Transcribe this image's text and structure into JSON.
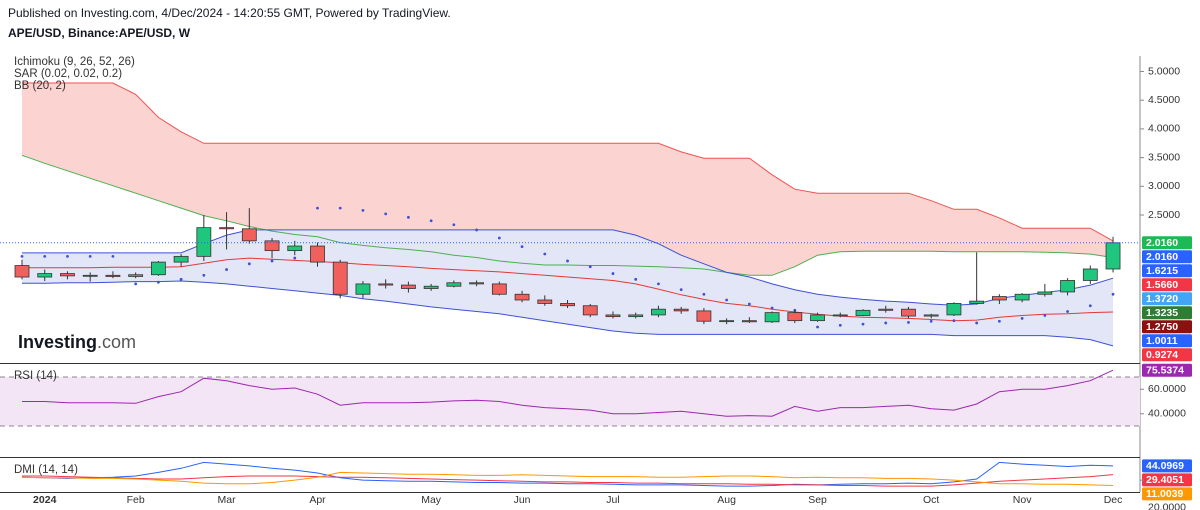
{
  "header": {
    "published": "Published on Investing.com, 4/Dec/2024 - 14:20:55 GMT, Powered by TradingView."
  },
  "watermark": {
    "brand": "Investing",
    "suffix": ".com"
  },
  "chart_data": [
    {
      "type": "candlestick",
      "title": "APE/USD, Binance:APE/USD, W",
      "indicators": [
        "Ichimoku (9, 26, 52, 26)",
        "SAR (0.02, 0.02, 0.2)",
        "BB (20, 2)"
      ],
      "categories": [
        null,
        "2024",
        null,
        null,
        null,
        "Feb",
        null,
        null,
        null,
        "Mar",
        null,
        null,
        null,
        "Apr",
        null,
        null,
        null,
        null,
        "May",
        null,
        null,
        null,
        "Jun",
        null,
        null,
        null,
        "Jul",
        null,
        null,
        null,
        null,
        "Aug",
        null,
        null,
        null,
        "Sep",
        null,
        null,
        null,
        null,
        "Oct",
        null,
        null,
        null,
        "Nov",
        null,
        null,
        null,
        "Dec"
      ],
      "open": [
        1.62,
        1.42,
        1.48,
        1.44,
        1.45,
        1.43,
        1.46,
        1.68,
        1.78,
        2.28,
        2.26,
        2.05,
        1.88,
        1.96,
        1.68,
        1.12,
        1.3,
        1.28,
        1.22,
        1.26,
        1.32,
        1.3,
        1.12,
        1.02,
        0.96,
        0.92,
        0.76,
        0.73,
        0.76,
        0.86,
        0.83,
        0.65,
        0.66,
        0.64,
        0.8,
        0.66,
        0.76,
        0.75,
        0.84,
        0.86,
        0.74,
        0.76,
        0.96,
        1.08,
        1.02,
        1.12,
        1.16,
        1.36,
        1.56
      ],
      "high": [
        1.72,
        1.55,
        1.52,
        1.5,
        1.52,
        1.5,
        1.7,
        1.82,
        2.5,
        2.55,
        2.62,
        2.1,
        2.05,
        2.02,
        1.72,
        1.35,
        1.38,
        1.34,
        1.3,
        1.36,
        1.36,
        1.34,
        1.18,
        1.1,
        1.02,
        0.95,
        0.82,
        0.8,
        0.92,
        0.9,
        0.88,
        0.7,
        0.72,
        0.82,
        0.84,
        0.8,
        0.8,
        0.86,
        0.92,
        0.9,
        0.78,
        0.98,
        1.85,
        1.12,
        1.14,
        1.3,
        1.4,
        1.62,
        2.12
      ],
      "low": [
        1.38,
        1.35,
        1.38,
        1.34,
        1.4,
        1.4,
        1.44,
        1.6,
        1.7,
        1.9,
        2.0,
        1.75,
        1.8,
        1.6,
        1.05,
        1.05,
        1.22,
        1.15,
        1.18,
        1.24,
        1.26,
        1.1,
        0.98,
        0.92,
        0.88,
        0.72,
        0.7,
        0.7,
        0.72,
        0.78,
        0.6,
        0.6,
        0.62,
        0.62,
        0.62,
        0.64,
        0.72,
        0.74,
        0.8,
        0.7,
        0.7,
        0.74,
        0.94,
        0.95,
        0.98,
        1.08,
        1.1,
        1.3,
        1.5
      ],
      "close": [
        1.42,
        1.48,
        1.44,
        1.45,
        1.43,
        1.46,
        1.68,
        1.78,
        2.28,
        2.26,
        2.05,
        1.88,
        1.96,
        1.68,
        1.12,
        1.3,
        1.28,
        1.22,
        1.26,
        1.32,
        1.3,
        1.12,
        1.02,
        0.96,
        0.92,
        0.76,
        0.73,
        0.76,
        0.86,
        0.83,
        0.65,
        0.66,
        0.64,
        0.8,
        0.66,
        0.76,
        0.75,
        0.84,
        0.86,
        0.74,
        0.76,
        0.96,
        1.0,
        1.02,
        1.12,
        1.16,
        1.36,
        1.56,
        2.016
      ],
      "up_color": "#1fc77e",
      "down_color": "#f0605d",
      "series": [
        {
          "kind": "line",
          "color": "#ef5350",
          "values": [
            4.8,
            4.8,
            4.8,
            4.8,
            4.8,
            4.6,
            4.2,
            3.95,
            3.75,
            3.75,
            3.75,
            3.75,
            3.75,
            3.75,
            3.75,
            3.75,
            3.75,
            3.75,
            3.75,
            3.75,
            3.75,
            3.75,
            3.75,
            3.75,
            3.75,
            3.75,
            3.75,
            3.75,
            3.75,
            3.6,
            3.49,
            3.49,
            3.49,
            3.2,
            2.95,
            2.88,
            2.88,
            2.88,
            2.88,
            2.88,
            2.75,
            2.6,
            2.6,
            2.45,
            2.27,
            2.27,
            2.27,
            2.27,
            2.05
          ]
        },
        {
          "kind": "line",
          "color": "#4caf50",
          "values": [
            3.54,
            3.4,
            3.27,
            3.14,
            3.01,
            2.88,
            2.75,
            2.62,
            2.49,
            2.4,
            2.3,
            2.22,
            2.16,
            2.12,
            2.02,
            1.97,
            1.93,
            1.9,
            1.86,
            1.8,
            1.76,
            1.7,
            1.66,
            1.63,
            1.63,
            1.62,
            1.62,
            1.61,
            1.6,
            1.58,
            1.56,
            1.5,
            1.45,
            1.45,
            1.6,
            1.8,
            1.86,
            1.87,
            1.87,
            1.87,
            1.87,
            1.86,
            1.86,
            1.86,
            1.86,
            1.85,
            1.84,
            1.82,
            1.76
          ]
        },
        {
          "kind": "line",
          "color": "#3f51d5",
          "values": [
            1.84,
            1.84,
            1.84,
            1.84,
            1.84,
            1.84,
            1.84,
            1.84,
            2.0,
            2.15,
            2.24,
            2.24,
            2.24,
            2.24,
            2.24,
            2.24,
            2.24,
            2.24,
            2.24,
            2.24,
            2.24,
            2.24,
            2.24,
            2.24,
            2.24,
            2.24,
            2.24,
            2.15,
            2.0,
            1.8,
            1.65,
            1.5,
            1.42,
            1.3,
            1.2,
            1.12,
            1.07,
            1.03,
            1.0,
            0.98,
            0.95,
            0.93,
            0.95,
            1.05,
            1.1,
            1.15,
            1.2,
            1.28,
            1.4
          ]
        },
        {
          "kind": "line",
          "color": "#3f51d5",
          "values": [
            1.31,
            1.31,
            1.32,
            1.32,
            1.33,
            1.34,
            1.34,
            1.35,
            1.33,
            1.3,
            1.26,
            1.22,
            1.18,
            1.14,
            1.1,
            1.04,
            1.0,
            0.95,
            0.9,
            0.86,
            0.82,
            0.78,
            0.72,
            0.66,
            0.6,
            0.54,
            0.48,
            0.44,
            0.42,
            0.42,
            0.42,
            0.42,
            0.42,
            0.42,
            0.42,
            0.42,
            0.42,
            0.42,
            0.42,
            0.42,
            0.42,
            0.4,
            0.4,
            0.4,
            0.4,
            0.4,
            0.37,
            0.33,
            0.22
          ]
        },
        {
          "kind": "line",
          "color": "#e53935",
          "values": [
            1.58,
            1.58,
            1.58,
            1.58,
            1.59,
            1.59,
            1.59,
            1.6,
            1.66,
            1.72,
            1.75,
            1.73,
            1.71,
            1.69,
            1.67,
            1.64,
            1.62,
            1.6,
            1.57,
            1.55,
            1.53,
            1.51,
            1.48,
            1.45,
            1.42,
            1.39,
            1.36,
            1.3,
            1.21,
            1.11,
            1.03,
            0.96,
            0.92,
            0.86,
            0.81,
            0.77,
            0.74,
            0.72,
            0.71,
            0.7,
            0.68,
            0.66,
            0.67,
            0.72,
            0.75,
            0.77,
            0.78,
            0.8,
            0.81
          ]
        },
        {
          "kind": "dots",
          "color": "#3f51d5",
          "values": [
            1.78,
            1.78,
            1.78,
            1.78,
            1.78,
            1.3,
            1.33,
            1.38,
            1.45,
            1.55,
            1.65,
            1.7,
            1.75,
            2.62,
            2.62,
            2.58,
            2.52,
            2.46,
            2.4,
            2.33,
            2.24,
            2.1,
            1.95,
            1.82,
            1.7,
            1.6,
            1.48,
            1.38,
            1.3,
            1.2,
            1.12,
            1.02,
            0.95,
            0.88,
            0.84,
            0.55,
            0.58,
            0.6,
            0.62,
            0.63,
            0.65,
            0.66,
            0.62,
            0.65,
            0.7,
            0.75,
            0.82,
            0.92,
            1.12
          ]
        }
      ],
      "fills": [
        {
          "between": [
            0,
            1
          ],
          "color": "#fbd3d1"
        },
        {
          "between": [
            2,
            3
          ],
          "color": "#e3e6f6"
        }
      ],
      "ylim": [
        -0.06,
        5.2
      ],
      "yticks": [
        {
          "value": 5,
          "label": "5.0000"
        },
        {
          "value": 4.5,
          "label": "4.5000"
        },
        {
          "value": 4,
          "label": "4.0000"
        },
        {
          "value": 3.5,
          "label": "3.5000"
        },
        {
          "value": 3,
          "label": "3.0000"
        },
        {
          "value": 2.5,
          "label": "2.5000"
        }
      ],
      "price_badges": [
        {
          "value": 2.016,
          "label": "2.0160",
          "color": "#1db954"
        },
        {
          "value": 2.016,
          "label": "2.0160",
          "color": "#2962ff"
        },
        {
          "value": 1.6215,
          "label": "1.6215",
          "color": "#2962ff"
        },
        {
          "value": 1.566,
          "label": "1.5660",
          "color": "#f23645"
        },
        {
          "value": 1.372,
          "label": "1.3720",
          "color": "#42a5f5"
        },
        {
          "value": 1.3235,
          "label": "1.3235",
          "color": "#2e7d32"
        },
        {
          "value": 1.275,
          "label": "1.2750",
          "color": "#8b1111"
        },
        {
          "value": 1.0011,
          "label": "1.0011",
          "color": "#2962ff"
        },
        {
          "value": 0.9274,
          "label": "0.9274",
          "color": "#f23645"
        }
      ]
    },
    {
      "type": "line",
      "title": "RSI (14)",
      "series": [
        {
          "color": "#9c27b0",
          "values": [
            50,
            50,
            49,
            49,
            49,
            48.5,
            54,
            58,
            69,
            67,
            63,
            60,
            61,
            56,
            47,
            49,
            49,
            49,
            49.5,
            50.5,
            51,
            50,
            47,
            45,
            44,
            43,
            40,
            40,
            41,
            42,
            40,
            38,
            38.5,
            38,
            46,
            42,
            45,
            45,
            46,
            47,
            44,
            43,
            48,
            58,
            60,
            60,
            63,
            67,
            75.5374
          ]
        }
      ],
      "bands": [
        70,
        30
      ],
      "band_color": "#f3e5f5",
      "ylim": [
        6.3,
        79
      ],
      "yticks": [
        {
          "value": 60,
          "label": "60.0000"
        },
        {
          "value": 40,
          "label": "40.0000"
        }
      ]
    },
    {
      "type": "line",
      "title": "DMI (14, 14)",
      "series": [
        {
          "color": "#2962ff",
          "values": [
            25,
            24,
            23,
            24,
            25,
            27,
            33,
            40,
            50,
            47,
            44,
            40,
            37,
            32,
            24,
            20,
            19,
            18,
            18,
            17,
            16,
            16,
            15,
            15,
            14,
            14,
            13,
            12,
            12,
            12,
            11,
            10,
            10,
            11,
            13,
            12,
            13,
            14,
            14,
            15,
            14,
            17,
            22,
            50,
            47,
            45,
            43,
            45,
            44.0969
          ]
        },
        {
          "color": "#f23645",
          "values": [
            27,
            27,
            26,
            25,
            24,
            23,
            22,
            22,
            24,
            26,
            27,
            27,
            27,
            26,
            25,
            25,
            24,
            23,
            22,
            21,
            20,
            19,
            18,
            17,
            17,
            16,
            16,
            15,
            15,
            14,
            14,
            14,
            13,
            13,
            12,
            12,
            11,
            11,
            10,
            10,
            10,
            12,
            15,
            18,
            20,
            22,
            24,
            26,
            29.4051
          ]
        },
        {
          "color": "#ff9800",
          "values": [
            25,
            24,
            24,
            23,
            23,
            22,
            20,
            18,
            15,
            14,
            14,
            16,
            20,
            25,
            33,
            32,
            31,
            30,
            30,
            29,
            28,
            28,
            29,
            28,
            27,
            26,
            26,
            26,
            25,
            25,
            26,
            27,
            27,
            26,
            24,
            25,
            24,
            24,
            23,
            23,
            22,
            20,
            17,
            14,
            14,
            13,
            13,
            12,
            11.0039
          ]
        }
      ],
      "ylim": [
        0,
        54
      ],
      "yticks": [
        {
          "value": 20,
          "label": "20.0000"
        }
      ]
    }
  ]
}
